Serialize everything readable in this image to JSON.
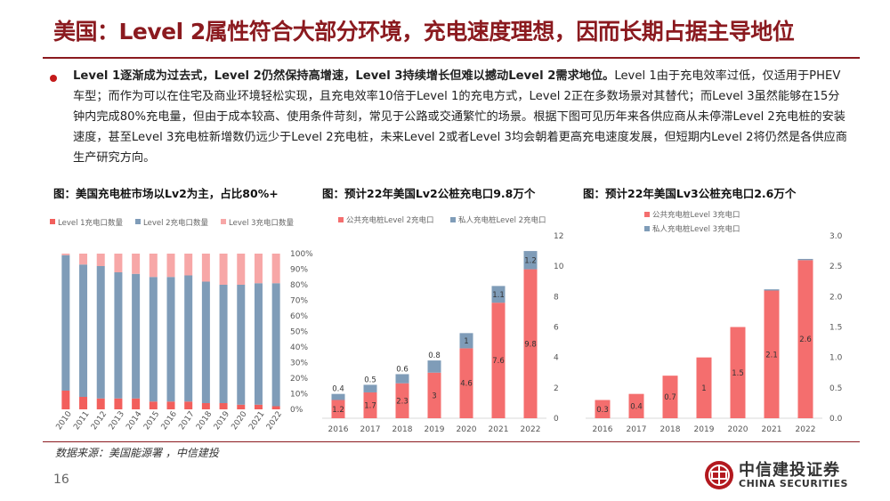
{
  "title": "美国：Level 2属性符合大部分环境，充电速度理想，因而长期占据主导地位",
  "paragraph": {
    "bold": "Level 1逐渐成为过去式，Level 2仍然保持高增速，Level 3持续增长但难以撼动Level 2需求地位。",
    "rest": "Level 1由于充电效率过低，仅适用于PHEV车型；而作为可以在住宅及商业环境轻松实现，且充电效率10倍于Level 1的充电方式，Level 2正在多数场景对其替代；而Level 3虽然能够在15分钟内完成80%充电量，但由于成本较高、使用条件苛刻，常见于公路或交通繁忙的场景。根据下图可见历年来各供应商从未停滞Level 2充电桩的安装速度，甚至Level 3充电桩新增数仍远少于Level 2充电桩，未来Level 2或者Level 3均会朝着更高充电速度发展，但短期内Level 2将仍然是各供应商生产研究方向。"
  },
  "footer": {
    "source": "数据来源：美国能源署 ，中信建投",
    "page": "16",
    "logo_zh": "中信建投证券",
    "logo_en": "CHINA SECURITIES"
  },
  "colors": {
    "brand": "#8b1a1f",
    "level1": "#f25f5c",
    "level2": "#7f9cb8",
    "level3": "#f7a7a7",
    "public": "#f46e6e",
    "private": "#7f9cb8"
  },
  "chart_data": [
    {
      "type": "bar",
      "stacked": "percent",
      "title": "图：美国充电桩市场以Lv2为主，占比80%+",
      "categories": [
        "2010",
        "2011",
        "2012",
        "2013",
        "2014",
        "2015",
        "2016",
        "2017",
        "2018",
        "2019",
        "2020",
        "2021",
        "2022"
      ],
      "series": [
        {
          "name": "Level 1充电口数量",
          "values": [
            12,
            8,
            7,
            7,
            7,
            5,
            5,
            5,
            4,
            4,
            3,
            3,
            2
          ]
        },
        {
          "name": "Level 2充电口数量",
          "values": [
            87,
            85,
            85,
            81,
            80,
            80,
            80,
            81,
            78,
            76,
            77,
            78,
            79
          ]
        },
        {
          "name": "Level 3充电口数量",
          "values": [
            1,
            7,
            8,
            12,
            13,
            15,
            15,
            14,
            18,
            20,
            20,
            19,
            19
          ]
        }
      ],
      "yticks": [
        "0%",
        "10%",
        "20%",
        "30%",
        "40%",
        "50%",
        "60%",
        "70%",
        "80%",
        "90%",
        "100%"
      ],
      "ylim": [
        0,
        100
      ],
      "legend": "top"
    },
    {
      "type": "bar",
      "stacked": true,
      "title": "图：预计22年美国Lv2公桩充电口9.8万个",
      "categories": [
        "2016",
        "2017",
        "2018",
        "2019",
        "2020",
        "2021",
        "2022"
      ],
      "series": [
        {
          "name": "公共充电桩Level 2充电口",
          "values": [
            1.2,
            1.7,
            2.3,
            3.0,
            4.6,
            7.6,
            9.8
          ]
        },
        {
          "name": "私人充电桩Level 2充电口",
          "values": [
            0.4,
            0.5,
            0.6,
            0.8,
            1.0,
            1.1,
            1.2
          ]
        }
      ],
      "yticks": [
        "0",
        "2",
        "4",
        "6",
        "8",
        "10",
        "12"
      ],
      "ylim": [
        0,
        12
      ],
      "legend": "top"
    },
    {
      "type": "bar",
      "stacked": true,
      "title": "图：预计22年美国Lv3公桩充电口2.6万个",
      "categories": [
        "2016",
        "2017",
        "2018",
        "2019",
        "2020",
        "2021",
        "2022"
      ],
      "series": [
        {
          "name": "公共充电桩Level 3充电口",
          "values": [
            0.3,
            0.4,
            0.7,
            1.0,
            1.5,
            2.1,
            2.6
          ]
        },
        {
          "name": "私人充电桩Level 3充电口",
          "values": [
            0,
            0,
            0,
            0,
            0,
            0.02,
            0.02
          ]
        }
      ],
      "yticks": [
        "0.0",
        "0.5",
        "1.0",
        "1.5",
        "2.0",
        "2.5",
        "3.0"
      ],
      "ylim": [
        0,
        3
      ],
      "legend": "top-left"
    }
  ]
}
